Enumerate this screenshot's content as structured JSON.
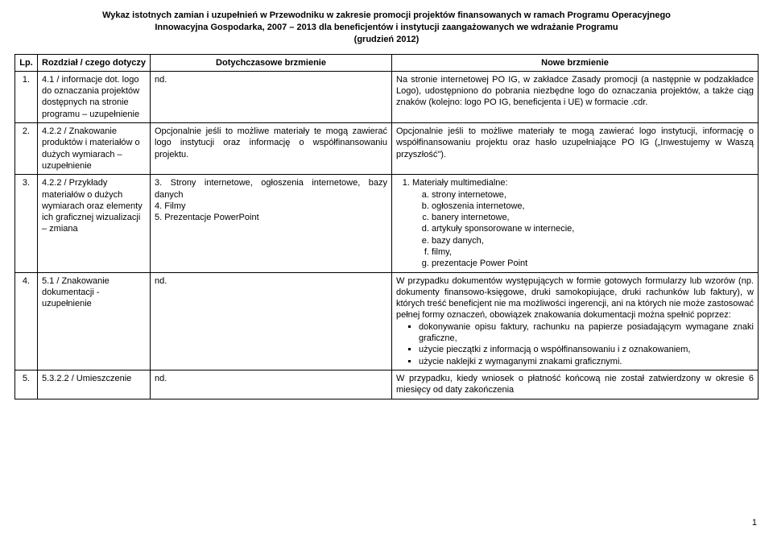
{
  "title_l1": "Wykaz istotnych zamian i uzupełnień w Przewodniku w zakresie promocji projektów finansowanych w ramach Programu Operacyjnego",
  "title_l2": "Innowacyjna Gospodarka, 2007 – 2013 dla beneficjentów i instytucji zaangażowanych we wdrażanie Programu",
  "title_l3": "(grudzień 2012)",
  "hdr_lp": "Lp.",
  "hdr_rozdzial": "Rozdział / czego dotyczy",
  "hdr_old": "Dotychczasowe brzmienie",
  "hdr_new": "Nowe brzmienie",
  "r1_lp": "1.",
  "r1_rozdzial": "4.1 / informacje dot. logo do oznaczania projektów dostępnych na stronie programu – uzupełnienie",
  "r1_old": "nd.",
  "r1_new": "Na stronie internetowej PO IG, w zakładce Zasady promocji (a następnie w podzakładce Logo), udostępniono do pobrania niezbędne logo do oznaczania projektów, a także ciąg znaków (kolejno: logo PO IG, beneficjenta i UE) w formacie .cdr.",
  "r2_lp": "2.",
  "r2_rozdzial": "4.2.2 / Znakowanie produktów i materiałów o dużych wymiarach – uzupełnienie",
  "r2_old": "Opcjonalnie jeśli to możliwe materiały te mogą zawierać logo instytucji oraz informację o współfinansowaniu projektu.",
  "r2_new": "Opcjonalnie jeśli to możliwe materiały te mogą zawierać logo instytucji, informację o współfinansowaniu projektu oraz hasło uzupełniające PO IG („Inwestujemy w Waszą przyszłość\").",
  "r3_lp": "3.",
  "r3_rozdzial": "4.2.2 / Przykłady materiałów o dużych wymiarach oraz elementy ich graficznej wizualizacji – zmiana",
  "r3_old_l1": "3. Strony internetowe, ogłoszenia internetowe, bazy danych",
  "r3_old_l2": "4. Filmy",
  "r3_old_l3": "5. Prezentacje PowerPoint",
  "r3_new_lead": "Materiały multimedialne:",
  "r3_new_a": "strony internetowe,",
  "r3_new_b": "ogłoszenia internetowe,",
  "r3_new_c": "banery internetowe,",
  "r3_new_d": "artykuły sponsorowane w internecie,",
  "r3_new_e": "bazy danych,",
  "r3_new_f": "filmy,",
  "r3_new_g": "prezentacje Power Point",
  "r4_lp": "4.",
  "r4_rozdzial": "5.1 / Znakowanie dokumentacji - uzupełnienie",
  "r4_old": "nd.",
  "r4_new_p": "W przypadku dokumentów występujących w formie gotowych formularzy lub wzorów (np. dokumenty finansowo-księgowe, druki samokopiujące, druki rachunków lub faktury), w których treść beneficjent nie ma możliwości ingerencji, ani na których nie może zastosować pełnej formy oznaczeń, obowiązek znakowania dokumentacji można spełnić poprzez:",
  "r4_new_b1": "dokonywanie opisu faktury, rachunku na papierze posiadającym wymagane znaki graficzne,",
  "r4_new_b2": "użycie pieczątki z informacją o współfinansowaniu i z oznakowaniem,",
  "r4_new_b3": "użycie naklejki z wymaganymi znakami graficznymi.",
  "r5_lp": "5.",
  "r5_rozdzial": "5.3.2.2 / Umieszczenie",
  "r5_old": "nd.",
  "r5_new": "W przypadku, kiedy wniosek o płatność końcową nie został zatwierdzony w okresie 6 miesięcy od daty zakończenia",
  "page_number": "1"
}
